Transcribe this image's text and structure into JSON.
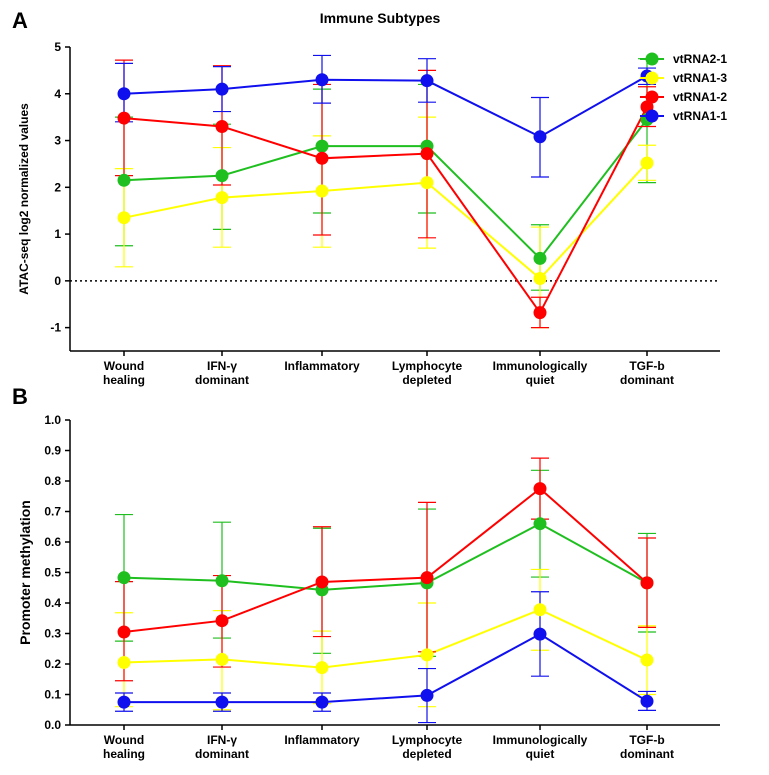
{
  "panel_a_letter": "A",
  "panel_b_letter": "B",
  "colors": {
    "vtRNA2-1": "#1fbf1f",
    "vtRNA1-3": "#ffff00",
    "vtRNA1-2": "#ff0000",
    "vtRNA1-1": "#1010ee"
  },
  "chart_data": [
    {
      "type": "line",
      "title": "Immune Subtypes",
      "ylabel": "ATAC-seq log2 normalized values",
      "xlabel": "",
      "ylim": [
        -1.5,
        5
      ],
      "yticks": [
        -1,
        0,
        1,
        2,
        3,
        4,
        5
      ],
      "zero_line": true,
      "categories": [
        [
          "Wound",
          "healing"
        ],
        [
          "IFN-γ",
          "dominant"
        ],
        [
          "Inflammatory"
        ],
        [
          "Lymphocyte",
          "depleted"
        ],
        [
          "Immunologically",
          "quiet"
        ],
        [
          "TGF-b",
          "dominant"
        ]
      ],
      "legend": [
        "vtRNA2-1",
        "vtRNA1-3",
        "vtRNA1-2",
        "vtRNA1-1"
      ],
      "series": [
        {
          "name": "vtRNA2-1",
          "values": [
            2.15,
            2.25,
            2.88,
            2.88,
            0.48,
            3.45
          ],
          "err_low": [
            0.75,
            1.1,
            1.45,
            1.45,
            -0.2,
            2.1
          ],
          "err_high": [
            3.5,
            3.35,
            4.1,
            4.2,
            1.2,
            4.75
          ]
        },
        {
          "name": "vtRNA1-3",
          "values": [
            1.35,
            1.78,
            1.92,
            2.1,
            0.05,
            2.52
          ],
          "err_low": [
            0.3,
            0.72,
            0.72,
            0.7,
            -1.0,
            2.15
          ],
          "err_high": [
            2.4,
            2.85,
            3.1,
            3.5,
            1.15,
            2.9
          ]
        },
        {
          "name": "vtRNA1-2",
          "values": [
            3.48,
            3.3,
            2.62,
            2.72,
            -0.68,
            3.72
          ],
          "err_low": [
            2.25,
            2.05,
            0.98,
            0.92,
            -1.0,
            3.3
          ],
          "err_high": [
            4.72,
            4.6,
            4.2,
            4.5,
            -0.35,
            4.15
          ]
        },
        {
          "name": "vtRNA1-1",
          "values": [
            4.0,
            4.1,
            4.3,
            4.28,
            3.08,
            4.38
          ],
          "err_low": [
            3.4,
            3.62,
            3.8,
            3.82,
            2.22,
            4.2
          ],
          "err_high": [
            4.65,
            4.58,
            4.82,
            4.75,
            3.92,
            4.55
          ]
        }
      ]
    },
    {
      "type": "line",
      "title": "",
      "ylabel": "Promoter methylation",
      "xlabel": "",
      "ylim": [
        0,
        1.0
      ],
      "yticks": [
        "0.0",
        "0.1",
        "0.2",
        "0.3",
        "0.4",
        "0.5",
        "0.6",
        "0.7",
        "0.8",
        "0.9",
        "1.0"
      ],
      "zero_line": false,
      "categories": [
        [
          "Wound",
          "healing"
        ],
        [
          "IFN-γ",
          "dominant"
        ],
        [
          "Inflammatory"
        ],
        [
          "Lymphocyte",
          "depleted"
        ],
        [
          "Immunologically",
          "quiet"
        ],
        [
          "TGF-b",
          "dominant"
        ]
      ],
      "series": [
        {
          "name": "vtRNA2-1",
          "values": [
            0.483,
            0.473,
            0.443,
            0.466,
            0.66,
            0.466
          ],
          "err_low": [
            0.275,
            0.285,
            0.235,
            0.225,
            0.485,
            0.305
          ],
          "err_high": [
            0.69,
            0.665,
            0.645,
            0.708,
            0.835,
            0.628
          ]
        },
        {
          "name": "vtRNA1-3",
          "values": [
            0.205,
            0.215,
            0.188,
            0.23,
            0.378,
            0.213
          ],
          "err_low": [
            0.06,
            0.05,
            0.07,
            0.06,
            0.245,
            0.1
          ],
          "err_high": [
            0.368,
            0.375,
            0.308,
            0.4,
            0.51,
            0.325
          ]
        },
        {
          "name": "vtRNA1-2",
          "values": [
            0.305,
            0.342,
            0.469,
            0.483,
            0.775,
            0.466
          ],
          "err_low": [
            0.145,
            0.19,
            0.29,
            0.24,
            0.675,
            0.32
          ],
          "err_high": [
            0.47,
            0.49,
            0.65,
            0.73,
            0.875,
            0.613
          ]
        },
        {
          "name": "vtRNA1-1",
          "values": [
            0.075,
            0.075,
            0.075,
            0.097,
            0.298,
            0.078
          ],
          "err_low": [
            0.045,
            0.045,
            0.045,
            0.008,
            0.16,
            0.048
          ],
          "err_high": [
            0.105,
            0.105,
            0.105,
            0.185,
            0.437,
            0.11
          ]
        }
      ]
    }
  ]
}
